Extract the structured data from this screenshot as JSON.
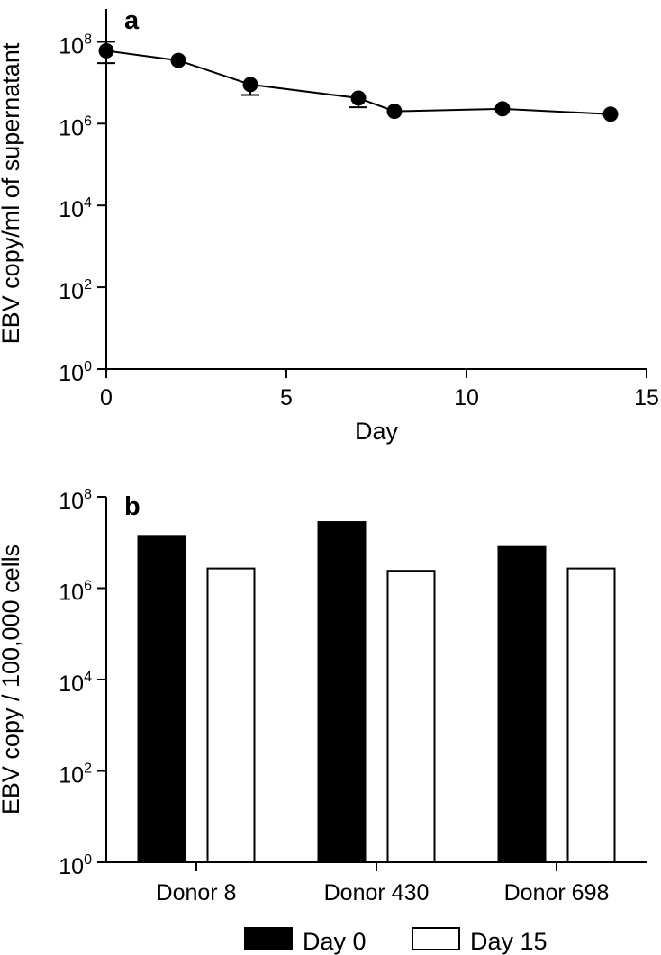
{
  "chart_data": [
    {
      "type": "line",
      "panel_label": "a",
      "xlabel": "Day",
      "ylabel": "EBV copy/ml of supernatant",
      "xlim": [
        0,
        15
      ],
      "ylim_log10": [
        0,
        8.8
      ],
      "yscale": "log",
      "x_ticks": [
        0,
        5,
        10,
        15
      ],
      "y_ticks": [
        {
          "base": "10",
          "exp": "0"
        },
        {
          "base": "10",
          "exp": "2"
        },
        {
          "base": "10",
          "exp": "4"
        },
        {
          "base": "10",
          "exp": "6"
        },
        {
          "base": "10",
          "exp": "8"
        }
      ],
      "series": [
        {
          "x": [
            0,
            2,
            4,
            7,
            8,
            11,
            14
          ],
          "y": [
            60000000,
            35000000,
            9000000,
            4200000,
            2000000,
            2300000,
            1700000
          ],
          "err_upper": [
            100000000,
            null,
            null,
            null,
            null,
            null,
            null
          ],
          "err_lower": [
            30000000,
            null,
            5000000,
            2500000,
            null,
            null,
            null
          ]
        }
      ],
      "grid": false
    },
    {
      "type": "bar",
      "panel_label": "b",
      "xlabel": "",
      "ylabel": "EBV copy / 100,000 cells",
      "yscale": "log",
      "ylim_log10": [
        0,
        8
      ],
      "categories": [
        "Donor 8",
        "Donor 430",
        "Donor 698"
      ],
      "y_ticks": [
        {
          "base": "10",
          "exp": "0"
        },
        {
          "base": "10",
          "exp": "2"
        },
        {
          "base": "10",
          "exp": "4"
        },
        {
          "base": "10",
          "exp": "6"
        },
        {
          "base": "10",
          "exp": "8"
        }
      ],
      "series": [
        {
          "name": "Day 0",
          "values": [
            14000000,
            28000000,
            8000000
          ],
          "color": "#000000"
        },
        {
          "name": "Day 15",
          "values": [
            2700000,
            2400000,
            2700000
          ],
          "color": "#ffffff"
        }
      ],
      "legend_position": "bottom",
      "grid": false
    }
  ]
}
